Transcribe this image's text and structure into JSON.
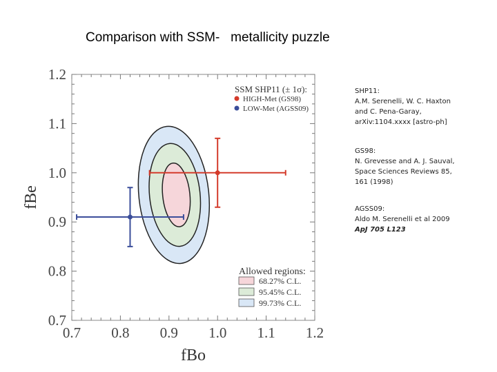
{
  "slide_title": "Comparison with SSM-   metallicity puzzle",
  "chart_data": {
    "type": "scatter",
    "xlabel": "fBo",
    "ylabel": "fBe",
    "xlim": [
      0.7,
      1.2
    ],
    "ylim": [
      0.7,
      1.2
    ],
    "x_ticks": [
      "0.7",
      "0.8",
      "0.9",
      "1.0",
      "1.1",
      "1.2"
    ],
    "y_ticks": [
      "0.7",
      "0.8",
      "0.9",
      "1.0",
      "1.1",
      "1.2"
    ],
    "legend_title": "SSM SHP11 (± 1σ):",
    "series": [
      {
        "name": "HIGH-Met (GS98)",
        "color": "#d43a2a",
        "x": 1.0,
        "y": 1.0,
        "x_err": [
          0.14,
          0.14
        ],
        "y_err": [
          0.07,
          0.07
        ]
      },
      {
        "name": "LOW-Met (AGSS09)",
        "color": "#3a4d9a",
        "x": 0.82,
        "y": 0.91,
        "x_err": [
          0.11,
          0.11
        ],
        "y_err": [
          0.06,
          0.06
        ]
      }
    ],
    "regions_title": "Allowed regions:",
    "regions": [
      {
        "label": "68.27% C.L.",
        "color": "#f6d6da",
        "center": [
          0.915,
          0.955
        ],
        "rx": 0.028,
        "ry": 0.065
      },
      {
        "label": "95.45% C.L.",
        "color": "#dcebd8",
        "center": [
          0.912,
          0.955
        ],
        "rx": 0.052,
        "ry": 0.105
      },
      {
        "label": "99.73% C.L.",
        "color": "#d9e7f6",
        "center": [
          0.91,
          0.955
        ],
        "rx": 0.072,
        "ry": 0.14
      }
    ]
  },
  "references": [
    {
      "lines": [
        "SHP11:",
        "A.M. Serenelli, W. C. Haxton",
        "and C. Pena-Garay,",
        "arXiv:1104.xxxx [astro-ph]"
      ]
    },
    {
      "lines": [
        "GS98:",
        "N. Grevesse and A. J. Sauval,",
        "Space Sciences Reviews 85,",
        "161 (1998)"
      ]
    },
    {
      "lines": [
        "AGSS09:",
        "Aldo M. Serenelli et al 2009",
        "ApJ 705 L123"
      ]
    }
  ]
}
